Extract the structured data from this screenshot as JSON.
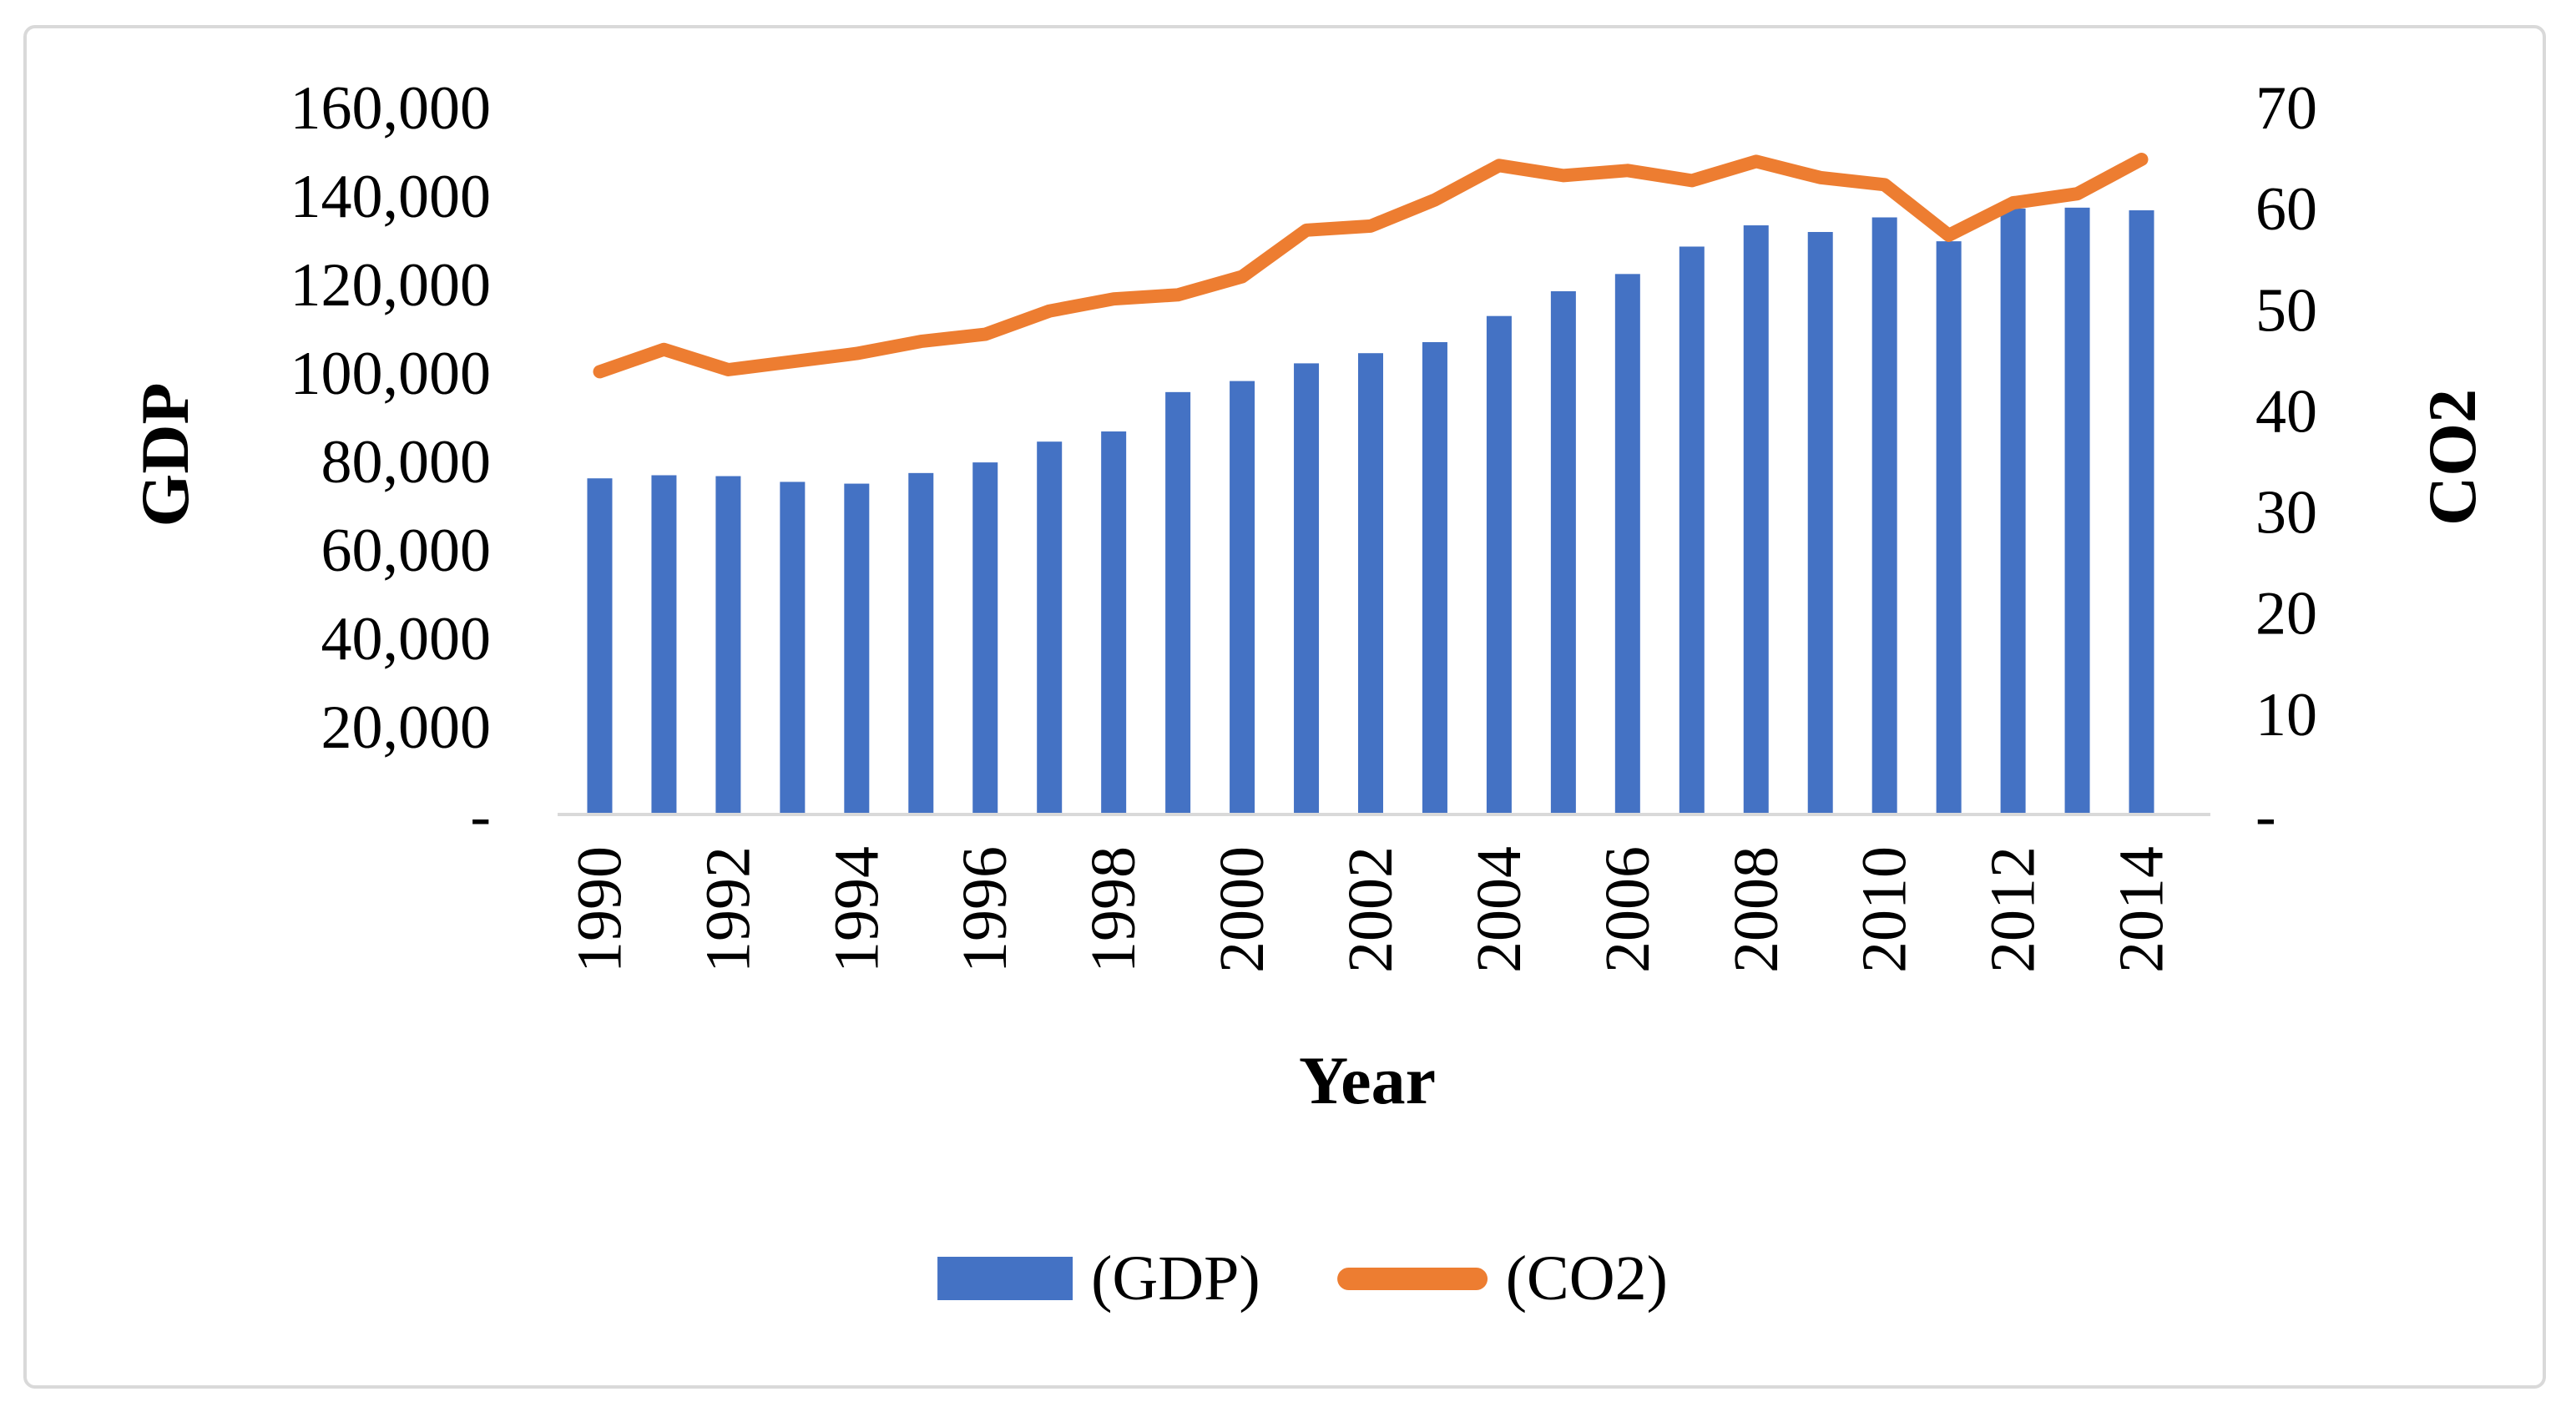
{
  "figure": {
    "background": "#ffffff",
    "frame_border_color": "#D9D9D9"
  },
  "chart_data": {
    "type": "bar",
    "subtype": "combo-bar-line-dual-axis",
    "grid": false,
    "legend_position": "bottom-center",
    "x": [
      1990,
      1991,
      1992,
      1993,
      1994,
      1995,
      1996,
      1997,
      1998,
      1999,
      2000,
      2001,
      2002,
      2003,
      2004,
      2005,
      2006,
      2007,
      2008,
      2009,
      2010,
      2011,
      2012,
      2013,
      2014
    ],
    "series": [
      {
        "name": "(GDP)",
        "kind": "bar",
        "axis": "left",
        "color": "#4472C4",
        "values": [
          76000,
          76700,
          76500,
          75200,
          74800,
          77200,
          79600,
          84300,
          86600,
          95500,
          98000,
          102000,
          104300,
          106800,
          112700,
          118300,
          122200,
          128400,
          133200,
          131700,
          135000,
          129600,
          137000,
          137200,
          136600
        ]
      },
      {
        "name": "(CO2)",
        "kind": "line",
        "axis": "right",
        "color": "#ED7D31",
        "values": [
          43.8,
          46.0,
          44.0,
          44.8,
          45.6,
          46.8,
          47.5,
          49.8,
          51.0,
          51.4,
          53.2,
          57.8,
          58.2,
          60.8,
          64.2,
          63.2,
          63.7,
          62.7,
          64.6,
          63.0,
          62.3,
          57.3,
          60.5,
          61.4,
          64.8
        ]
      }
    ],
    "left_axis": {
      "title": "GDP",
      "min": 0,
      "max": 160000,
      "step": 20000,
      "tick_labels": [
        "-",
        "20,000",
        "40,000",
        "60,000",
        "80,000",
        "100,000",
        "120,000",
        "140,000",
        "160,000"
      ]
    },
    "right_axis": {
      "title": "CO2",
      "min": 0,
      "max": 70,
      "step": 10,
      "tick_labels": [
        "-",
        "10",
        "20",
        "30",
        "40",
        "50",
        "60",
        "70"
      ]
    },
    "x_axis": {
      "title": "Year",
      "tick_labels": [
        "1990",
        "1992",
        "1994",
        "1996",
        "1998",
        "2000",
        "2002",
        "2004",
        "2006",
        "2008",
        "2010",
        "2012",
        "2014"
      ]
    },
    "legend": [
      {
        "label": "(GDP)",
        "marker": "rect",
        "color": "#4472C4"
      },
      {
        "label": "(CO2)",
        "marker": "line",
        "color": "#ED7D31"
      }
    ]
  }
}
